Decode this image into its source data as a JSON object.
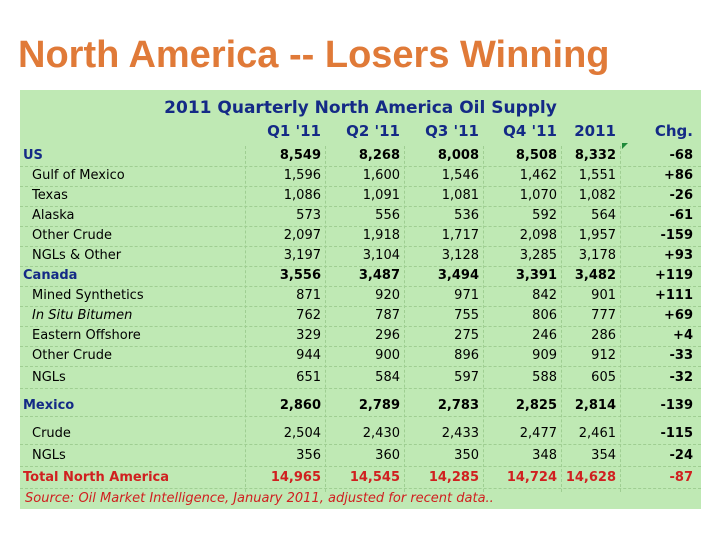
{
  "slide": {
    "title": "North America -- Losers Winning"
  },
  "table": {
    "title": "2011 Quarterly North America Oil Supply",
    "headers": [
      "Q1 '11",
      "Q2 '11",
      "Q3 '11",
      "Q4 '11",
      "2011",
      "Chg."
    ],
    "rows": [
      {
        "label": "US",
        "style": "top",
        "values": [
          "8,549",
          "8,268",
          "8,008",
          "8,508",
          "8,332",
          "-68"
        ]
      },
      {
        "label": "Gulf of Mexico",
        "style": "sub",
        "values": [
          "1,596",
          "1,600",
          "1,546",
          "1,462",
          "1,551",
          "+86"
        ]
      },
      {
        "label": "Texas",
        "style": "sub",
        "values": [
          "1,086",
          "1,091",
          "1,081",
          "1,070",
          "1,082",
          "-26"
        ]
      },
      {
        "label": "Alaska",
        "style": "sub",
        "values": [
          "573",
          "556",
          "536",
          "592",
          "564",
          "-61"
        ]
      },
      {
        "label": "Other Crude",
        "style": "sub",
        "values": [
          "2,097",
          "1,918",
          "1,717",
          "2,098",
          "1,957",
          "-159"
        ]
      },
      {
        "label": "NGLs & Other",
        "style": "sub",
        "values": [
          "3,197",
          "3,104",
          "3,128",
          "3,285",
          "3,178",
          "+93"
        ]
      },
      {
        "label": "Canada",
        "style": "top",
        "values": [
          "3,556",
          "3,487",
          "3,494",
          "3,391",
          "3,482",
          "+119"
        ]
      },
      {
        "label": "Mined Synthetics",
        "style": "sub",
        "values": [
          "871",
          "920",
          "971",
          "842",
          "901",
          "+111"
        ]
      },
      {
        "label": "In Situ Bitumen",
        "style": "sub-italic",
        "values": [
          "762",
          "787",
          "755",
          "806",
          "777",
          "+69"
        ]
      },
      {
        "label": "Eastern Offshore",
        "style": "sub",
        "values": [
          "329",
          "296",
          "275",
          "246",
          "286",
          "+4"
        ]
      },
      {
        "label": "Other Crude",
        "style": "sub",
        "values": [
          "944",
          "900",
          "896",
          "909",
          "912",
          "-33"
        ]
      },
      {
        "label": "NGLs",
        "style": "sub",
        "values": [
          "651",
          "584",
          "597",
          "588",
          "605",
          "-32"
        ]
      },
      {
        "label": "Mexico",
        "style": "top",
        "values": [
          "2,860",
          "2,789",
          "2,783",
          "2,825",
          "2,814",
          "-139"
        ]
      },
      {
        "label": "Crude",
        "style": "sub",
        "values": [
          "2,504",
          "2,430",
          "2,433",
          "2,477",
          "2,461",
          "-115"
        ]
      },
      {
        "label": "NGLs",
        "style": "sub",
        "values": [
          "356",
          "360",
          "350",
          "348",
          "354",
          "-24"
        ]
      },
      {
        "label": "Total North America",
        "style": "total",
        "values": [
          "14,965",
          "14,545",
          "14,285",
          "14,724",
          "14,628",
          "-87"
        ]
      }
    ],
    "source": "Source: Oil Market Intelligence, January 2011, adjusted for recent data.."
  },
  "colors": {
    "title": "#e07a38",
    "panel": "#bfe9b4",
    "header": "#142a86",
    "total": "#d02020"
  }
}
